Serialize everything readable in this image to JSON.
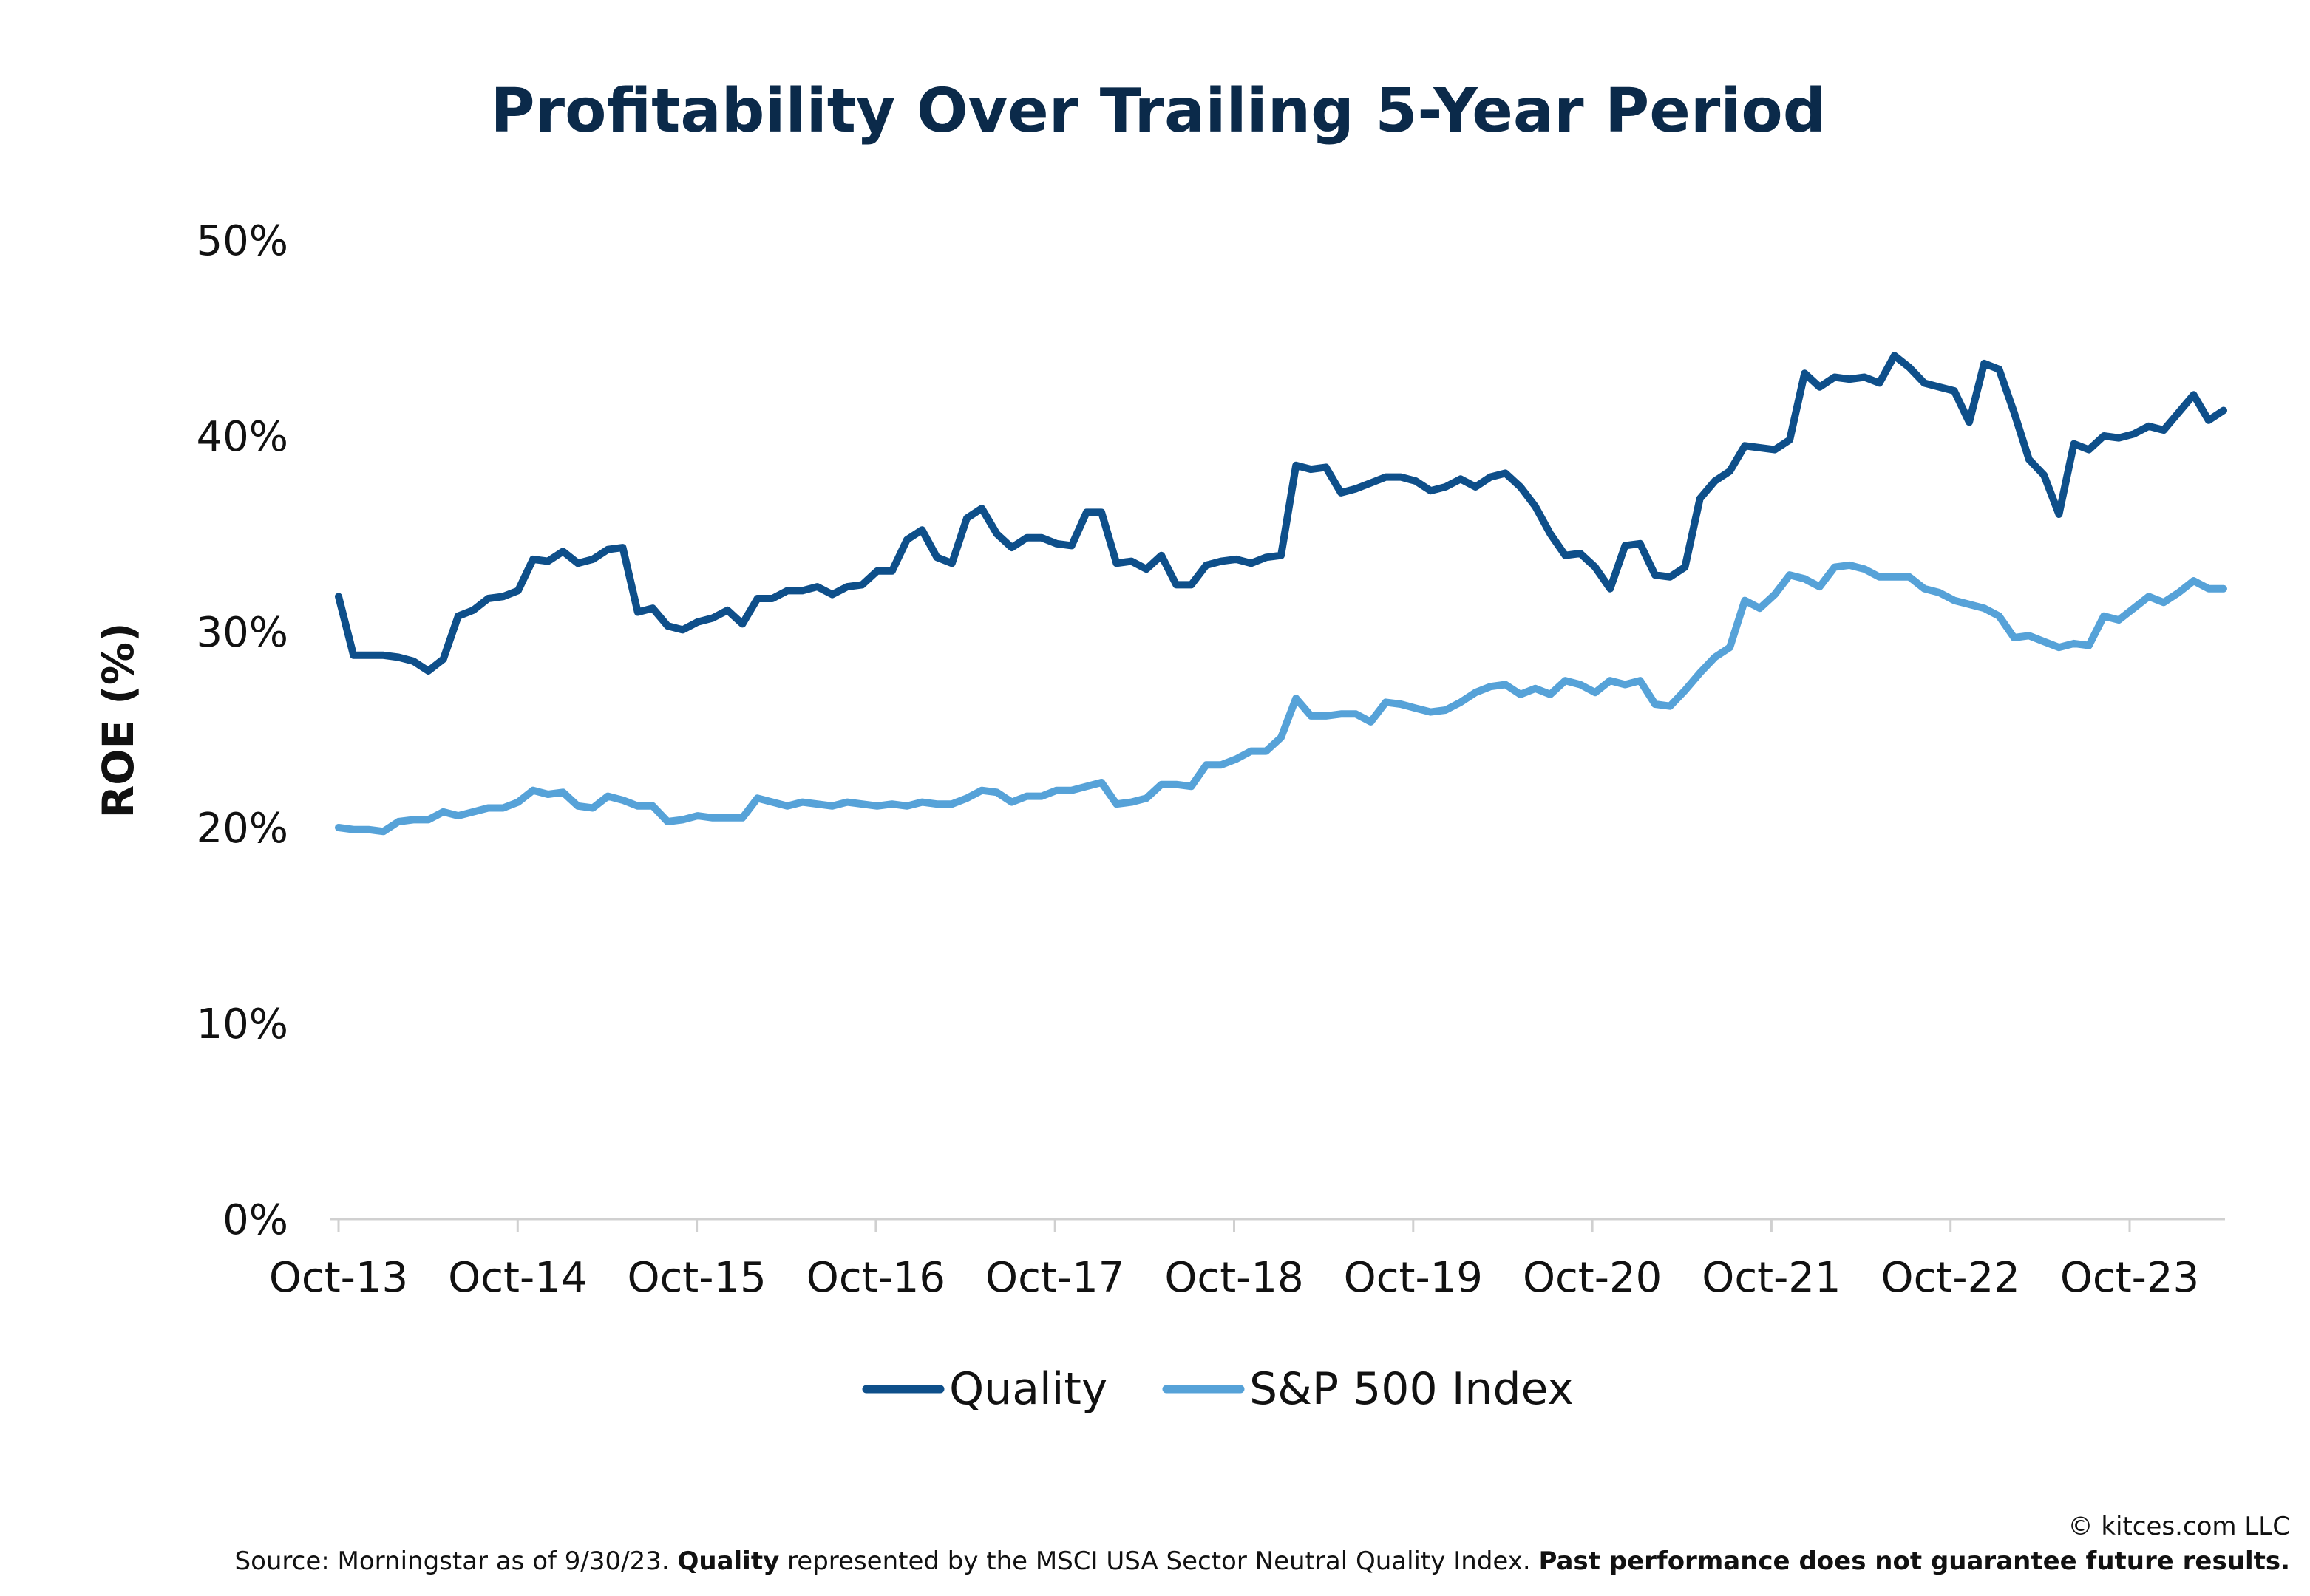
{
  "chart_data": {
    "type": "line",
    "title": "Profitability Over Trailing 5-Year Period",
    "ylabel": "ROE (%)",
    "xlabel": "",
    "ylim": [
      0,
      50
    ],
    "y_ticks": [
      "0%",
      "10%",
      "20%",
      "30%",
      "40%",
      "50%"
    ],
    "x_tick_labels": [
      "Oct-13",
      "Oct-14",
      "Oct-15",
      "Oct-16",
      "Oct-17",
      "Oct-18",
      "Oct-19",
      "Oct-20",
      "Oct-21",
      "Oct-22",
      "Oct-23"
    ],
    "x_start": "Oct-13",
    "x_end": "Jun-24",
    "grid": false,
    "legend_position": "bottom",
    "series": [
      {
        "name": "Quality",
        "color": "#0e4f8a",
        "values": [
          31.8,
          28.8,
          28.8,
          28.8,
          28.7,
          28.5,
          28.0,
          28.6,
          30.8,
          31.1,
          31.7,
          31.8,
          32.1,
          33.7,
          33.6,
          34.1,
          33.5,
          33.7,
          34.2,
          34.3,
          31.0,
          31.2,
          30.3,
          30.1,
          30.5,
          30.7,
          31.1,
          30.4,
          31.7,
          31.7,
          32.1,
          32.1,
          32.3,
          31.9,
          32.3,
          32.4,
          33.1,
          33.1,
          34.7,
          35.2,
          33.8,
          33.5,
          35.8,
          36.3,
          35.0,
          34.3,
          34.8,
          34.8,
          34.5,
          34.4,
          36.1,
          36.1,
          33.5,
          33.6,
          33.2,
          33.9,
          32.4,
          32.4,
          33.4,
          33.6,
          33.7,
          33.5,
          33.8,
          33.9,
          38.5,
          38.3,
          38.4,
          37.1,
          37.3,
          37.6,
          37.9,
          37.9,
          37.7,
          37.2,
          37.4,
          37.8,
          37.4,
          37.9,
          38.1,
          37.4,
          36.4,
          35.0,
          33.9,
          34.0,
          33.3,
          32.2,
          34.4,
          34.5,
          32.9,
          32.8,
          33.3,
          36.8,
          37.7,
          38.2,
          39.5,
          39.4,
          39.3,
          39.8,
          43.2,
          42.5,
          43.0,
          42.9,
          43.0,
          42.7,
          44.1,
          43.5,
          42.7,
          42.5,
          42.3,
          40.7,
          43.7,
          43.4,
          41.2,
          38.8,
          38.0,
          36.0,
          39.6,
          39.3,
          40.0,
          39.9,
          40.1,
          40.5,
          40.3,
          41.2,
          42.1,
          40.8,
          41.3
        ]
      },
      {
        "name": "S&P 500 Index",
        "color": "#56a2d8",
        "values": [
          20.0,
          19.9,
          19.9,
          19.8,
          20.3,
          20.4,
          20.4,
          20.8,
          20.6,
          20.8,
          21.0,
          21.0,
          21.3,
          21.9,
          21.7,
          21.8,
          21.1,
          21.0,
          21.6,
          21.4,
          21.1,
          21.1,
          20.3,
          20.4,
          20.6,
          20.5,
          20.5,
          20.5,
          21.5,
          21.3,
          21.1,
          21.3,
          21.2,
          21.1,
          21.3,
          21.2,
          21.1,
          21.2,
          21.1,
          21.3,
          21.2,
          21.2,
          21.5,
          21.9,
          21.8,
          21.3,
          21.6,
          21.6,
          21.9,
          21.9,
          22.1,
          22.3,
          21.2,
          21.3,
          21.5,
          22.2,
          22.2,
          22.1,
          23.2,
          23.2,
          23.5,
          23.9,
          23.9,
          24.6,
          26.6,
          25.7,
          25.7,
          25.8,
          25.8,
          25.4,
          26.4,
          26.3,
          26.1,
          25.9,
          26.0,
          26.4,
          26.9,
          27.2,
          27.3,
          26.8,
          27.1,
          26.8,
          27.5,
          27.3,
          26.9,
          27.5,
          27.3,
          27.5,
          26.3,
          26.2,
          27.0,
          27.9,
          28.7,
          29.2,
          31.6,
          31.2,
          31.9,
          32.9,
          32.7,
          32.3,
          33.3,
          33.4,
          33.2,
          32.8,
          32.8,
          32.8,
          32.2,
          32.0,
          31.6,
          31.4,
          31.2,
          30.8,
          29.7,
          29.8,
          29.5,
          29.2,
          29.4,
          29.3,
          30.8,
          30.6,
          31.2,
          31.8,
          31.5,
          32.0,
          32.6,
          32.2,
          32.2
        ]
      }
    ]
  },
  "footer": {
    "copyright": "© kitces.com LLC",
    "source_prefix": "Source: Morningstar as of 9/30/23. ",
    "source_bold": "Quality",
    "source_middle": " represented by the MSCI USA Sector Neutral Quality Index. ",
    "disclaimer": "Past performance does not guarantee future results."
  }
}
